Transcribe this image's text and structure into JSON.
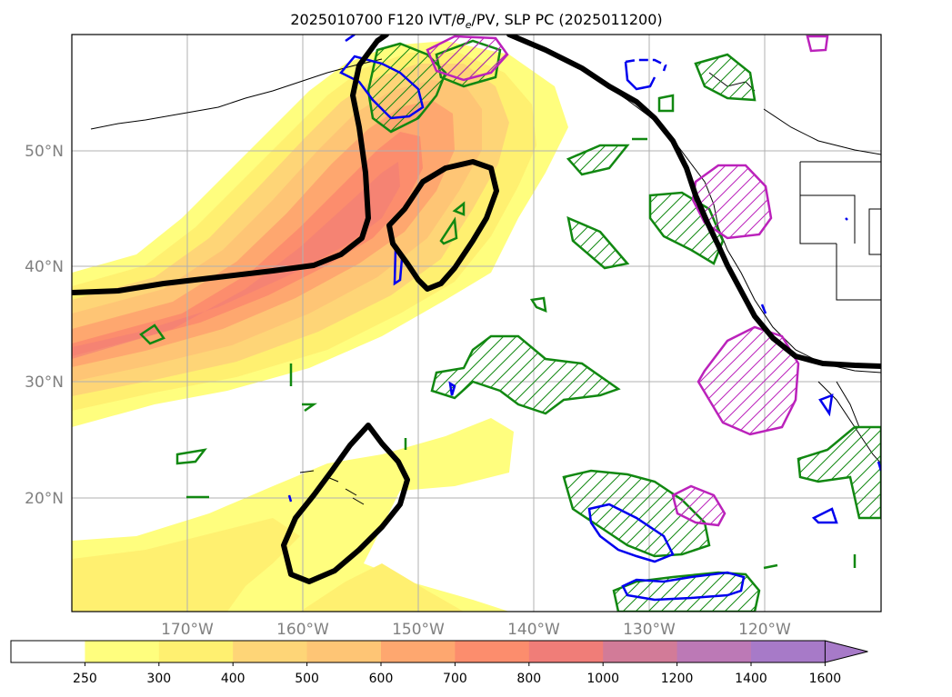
{
  "title": "2025010700 F120 IVT/θe/PV, SLP PC (2025011200)",
  "title_parts": {
    "prefix": "2025010700 F120 IVT/",
    "theta": "θ",
    "theta_sub": "e",
    "suffix": "/PV, SLP PC (2025011200)"
  },
  "latitude_labels": [
    "50°N",
    "40°N",
    "30°N",
    "20°N"
  ],
  "longitude_labels": [
    "170°W",
    "160°W",
    "150°W",
    "140°W",
    "130°W",
    "120°W"
  ],
  "colorbar": {
    "tick_labels": [
      "250",
      "300",
      "400",
      "500",
      "600",
      "700",
      "800",
      "1000",
      "1200",
      "1400",
      "1600"
    ],
    "colors": [
      "#ffffff",
      "#fffe7e",
      "#fff070",
      "#fed577",
      "#fec575",
      "#fea76f",
      "#fc8d6d",
      "#f07d78",
      "#d27b98",
      "#bc79b6",
      "#a77ac8"
    ],
    "extend": "max"
  },
  "colors": {
    "slp_contour": "#000000",
    "green_hatch": "#118811",
    "blue_contour": "#0000ee",
    "magenta_contour": "#bb22bb",
    "grid": "#b0b0b0",
    "axis_label": "#808080"
  }
}
